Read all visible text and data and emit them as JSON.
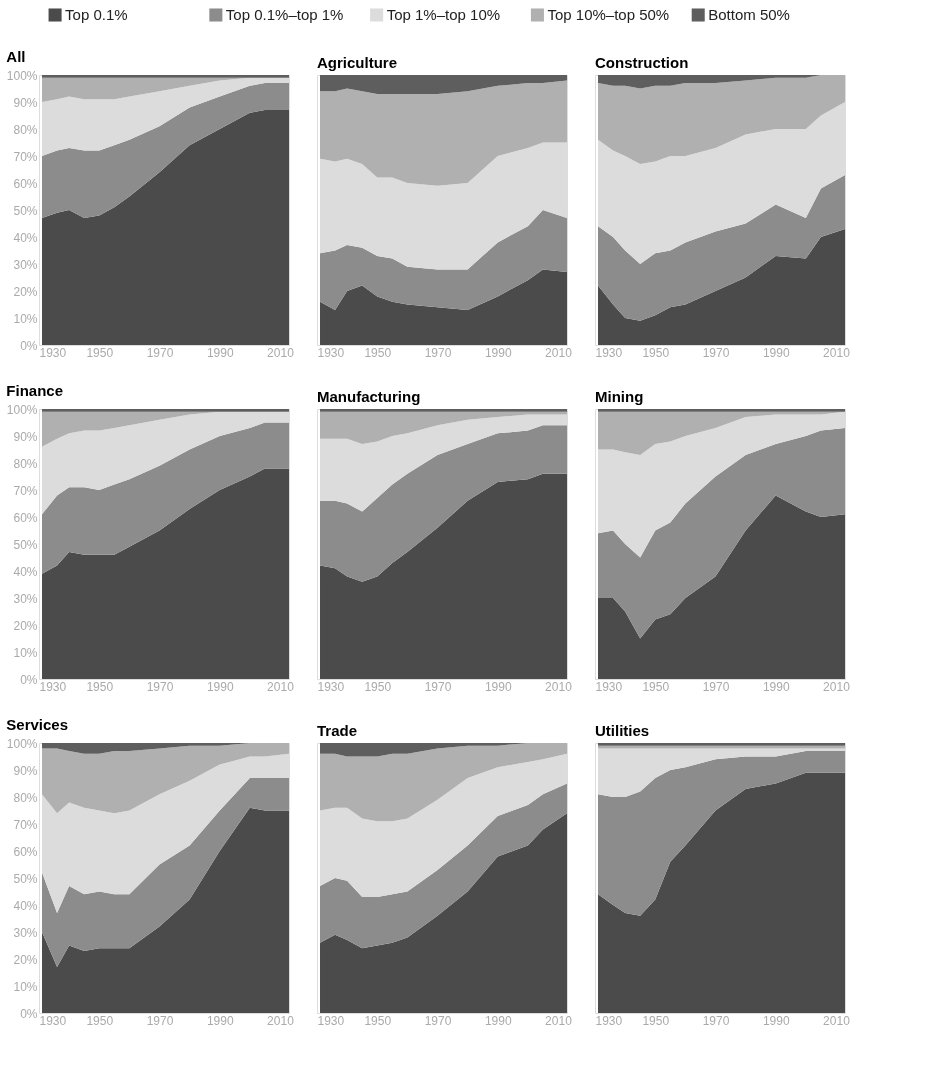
{
  "chart_data": [
    {
      "type": "area",
      "title": "All",
      "stacked": true,
      "legend": "top",
      "x": [
        1931,
        1936,
        1940,
        1945,
        1950,
        1955,
        1960,
        1970,
        1980,
        1990,
        2000,
        2005,
        2013
      ],
      "xlim": [
        1930,
        2013
      ],
      "xticks": [
        1930,
        1950,
        1970,
        1990,
        2010
      ],
      "ylim": [
        0,
        100
      ],
      "yticks": [
        {
          "value": 0,
          "label": "0%"
        },
        {
          "value": 10,
          "label": "10%"
        },
        {
          "value": 20,
          "label": "20%"
        },
        {
          "value": 30,
          "label": "30%"
        },
        {
          "value": 40,
          "label": "40%"
        },
        {
          "value": 50,
          "label": "50%"
        },
        {
          "value": 60,
          "label": "60%"
        },
        {
          "value": 70,
          "label": "70%"
        },
        {
          "value": 80,
          "label": "80%"
        },
        {
          "value": 90,
          "label": "90%"
        },
        {
          "value": 100,
          "label": "100%"
        }
      ],
      "series": [
        {
          "name": "Top 0.1%",
          "color": "#4b4b4b",
          "values": [
            47,
            49,
            50,
            47,
            48,
            51,
            55,
            64,
            74,
            80,
            86,
            87,
            87
          ]
        },
        {
          "name": "Top 0.1%–top 1%",
          "color": "#8c8c8c",
          "values": [
            23,
            23,
            23,
            25,
            24,
            23,
            21,
            17,
            14,
            12,
            10,
            10,
            10
          ]
        },
        {
          "name": "Top 1%–top 10%",
          "color": "#dcdcdc",
          "values": [
            20,
            19,
            19,
            19,
            19,
            17,
            16,
            13,
            8,
            6,
            3,
            2,
            2
          ]
        },
        {
          "name": "Top 10%–top 50%",
          "color": "#b0b0b0",
          "values": [
            9,
            8,
            7,
            8,
            8,
            8,
            7,
            5,
            3,
            1,
            0,
            0,
            0
          ]
        },
        {
          "name": "Bottom 50%",
          "color": "#5e5e5e",
          "values": [
            1,
            1,
            1,
            1,
            1,
            1,
            1,
            1,
            1,
            1,
            1,
            1,
            1
          ]
        }
      ]
    },
    {
      "type": "area",
      "title": "Agriculture",
      "stacked": true,
      "tick_labels": "x",
      "x": [
        1931,
        1936,
        1940,
        1945,
        1950,
        1955,
        1960,
        1970,
        1980,
        1990,
        2000,
        2005,
        2013
      ],
      "xlim": [
        1930,
        2013
      ],
      "xticks": [
        1930,
        1950,
        1970,
        1990,
        2010
      ],
      "ylim": [
        0,
        100
      ],
      "series": [
        {
          "color": "#4b4b4b",
          "values": [
            16,
            13,
            20,
            22,
            18,
            16,
            15,
            14,
            13,
            18,
            24,
            28,
            27
          ]
        },
        {
          "color": "#8c8c8c",
          "values": [
            18,
            22,
            17,
            14,
            15,
            16,
            14,
            14,
            15,
            20,
            20,
            22,
            20
          ]
        },
        {
          "color": "#dcdcdc",
          "values": [
            35,
            33,
            32,
            31,
            29,
            30,
            31,
            31,
            32,
            32,
            29,
            25,
            28
          ]
        },
        {
          "color": "#b0b0b0",
          "values": [
            25,
            26,
            26,
            27,
            31,
            31,
            33,
            34,
            34,
            26,
            24,
            22,
            23
          ]
        },
        {
          "color": "#5e5e5e",
          "values": [
            6,
            6,
            5,
            6,
            7,
            7,
            7,
            7,
            6,
            4,
            3,
            3,
            2
          ]
        }
      ]
    },
    {
      "type": "area",
      "title": "Construction",
      "stacked": true,
      "tick_labels": "x",
      "x": [
        1931,
        1936,
        1940,
        1945,
        1950,
        1955,
        1960,
        1970,
        1980,
        1990,
        2000,
        2005,
        2013
      ],
      "xlim": [
        1930,
        2013
      ],
      "xticks": [
        1930,
        1950,
        1970,
        1990,
        2010
      ],
      "ylim": [
        0,
        100
      ],
      "series": [
        {
          "color": "#4b4b4b",
          "values": [
            22,
            15,
            10,
            9,
            11,
            14,
            15,
            20,
            25,
            33,
            32,
            40,
            43
          ]
        },
        {
          "color": "#8c8c8c",
          "values": [
            22,
            25,
            25,
            21,
            23,
            21,
            23,
            22,
            20,
            19,
            15,
            18,
            20
          ]
        },
        {
          "color": "#dcdcdc",
          "values": [
            32,
            32,
            35,
            37,
            34,
            35,
            32,
            31,
            33,
            28,
            33,
            27,
            27
          ]
        },
        {
          "color": "#b0b0b0",
          "values": [
            21,
            24,
            26,
            28,
            28,
            26,
            27,
            24,
            20,
            19,
            19,
            15,
            10
          ]
        },
        {
          "color": "#5e5e5e",
          "values": [
            3,
            4,
            4,
            5,
            4,
            4,
            3,
            3,
            2,
            1,
            1,
            0,
            0
          ]
        }
      ]
    },
    {
      "type": "area",
      "title": "Finance",
      "stacked": true,
      "x": [
        1931,
        1936,
        1940,
        1945,
        1950,
        1955,
        1960,
        1970,
        1980,
        1990,
        2000,
        2005,
        2013
      ],
      "xlim": [
        1930,
        2013
      ],
      "xticks": [
        1930,
        1950,
        1970,
        1990,
        2010
      ],
      "ylim": [
        0,
        100
      ],
      "yticks": [
        {
          "value": 0,
          "label": "0%"
        },
        {
          "value": 10,
          "label": "10%"
        },
        {
          "value": 20,
          "label": "20%"
        },
        {
          "value": 30,
          "label": "30%"
        },
        {
          "value": 40,
          "label": "40%"
        },
        {
          "value": 50,
          "label": "50%"
        },
        {
          "value": 60,
          "label": "60%"
        },
        {
          "value": 70,
          "label": "70%"
        },
        {
          "value": 80,
          "label": "80%"
        },
        {
          "value": 90,
          "label": "90%"
        },
        {
          "value": 100,
          "label": "100%"
        }
      ],
      "series": [
        {
          "color": "#4b4b4b",
          "values": [
            39,
            42,
            47,
            46,
            46,
            46,
            49,
            55,
            63,
            70,
            75,
            78,
            78
          ]
        },
        {
          "color": "#8c8c8c",
          "values": [
            22,
            26,
            24,
            25,
            24,
            26,
            25,
            24,
            22,
            20,
            18,
            17,
            17
          ]
        },
        {
          "color": "#dcdcdc",
          "values": [
            25,
            21,
            20,
            21,
            22,
            21,
            20,
            17,
            13,
            9,
            6,
            4,
            4
          ]
        },
        {
          "color": "#b0b0b0",
          "values": [
            13,
            10,
            8,
            7,
            7,
            6,
            5,
            3,
            1,
            0,
            0,
            0,
            0
          ]
        },
        {
          "color": "#5e5e5e",
          "values": [
            1,
            1,
            1,
            1,
            1,
            1,
            1,
            1,
            1,
            1,
            1,
            1,
            1
          ]
        }
      ]
    },
    {
      "type": "area",
      "title": "Manufacturing",
      "stacked": true,
      "tick_labels": "x",
      "x": [
        1931,
        1936,
        1940,
        1945,
        1950,
        1955,
        1960,
        1970,
        1980,
        1990,
        2000,
        2005,
        2013
      ],
      "xlim": [
        1930,
        2013
      ],
      "xticks": [
        1930,
        1950,
        1970,
        1990,
        2010
      ],
      "ylim": [
        0,
        100
      ],
      "series": [
        {
          "color": "#4b4b4b",
          "values": [
            42,
            41,
            38,
            36,
            38,
            43,
            47,
            56,
            66,
            73,
            74,
            76,
            76
          ]
        },
        {
          "color": "#8c8c8c",
          "values": [
            24,
            25,
            27,
            26,
            29,
            29,
            29,
            27,
            21,
            18,
            18,
            18,
            18
          ]
        },
        {
          "color": "#dcdcdc",
          "values": [
            23,
            23,
            24,
            25,
            21,
            18,
            15,
            11,
            9,
            6,
            6,
            4,
            4
          ]
        },
        {
          "color": "#b0b0b0",
          "values": [
            10,
            10,
            10,
            12,
            11,
            9,
            8,
            5,
            3,
            2,
            1,
            1,
            1
          ]
        },
        {
          "color": "#5e5e5e",
          "values": [
            1,
            1,
            1,
            1,
            1,
            1,
            1,
            1,
            1,
            1,
            1,
            1,
            1
          ]
        }
      ]
    },
    {
      "type": "area",
      "title": "Mining",
      "stacked": true,
      "tick_labels": "x",
      "x": [
        1931,
        1936,
        1940,
        1945,
        1950,
        1955,
        1960,
        1970,
        1980,
        1990,
        2000,
        2005,
        2013
      ],
      "xlim": [
        1930,
        2013
      ],
      "xticks": [
        1930,
        1950,
        1970,
        1990,
        2010
      ],
      "ylim": [
        0,
        100
      ],
      "series": [
        {
          "color": "#4b4b4b",
          "values": [
            30,
            30,
            25,
            15,
            22,
            24,
            30,
            38,
            55,
            68,
            62,
            60,
            61
          ]
        },
        {
          "color": "#8c8c8c",
          "values": [
            24,
            25,
            25,
            30,
            33,
            34,
            35,
            37,
            28,
            19,
            28,
            32,
            32
          ]
        },
        {
          "color": "#dcdcdc",
          "values": [
            31,
            30,
            34,
            38,
            32,
            30,
            25,
            18,
            14,
            11,
            8,
            6,
            6
          ]
        },
        {
          "color": "#b0b0b0",
          "values": [
            14,
            14,
            15,
            16,
            12,
            11,
            9,
            6,
            2,
            1,
            1,
            1,
            0
          ]
        },
        {
          "color": "#5e5e5e",
          "values": [
            1,
            1,
            1,
            1,
            1,
            1,
            1,
            1,
            1,
            1,
            1,
            1,
            1
          ]
        }
      ]
    },
    {
      "type": "area",
      "title": "Services",
      "stacked": true,
      "x": [
        1931,
        1936,
        1940,
        1945,
        1950,
        1955,
        1960,
        1970,
        1980,
        1990,
        2000,
        2005,
        2013
      ],
      "xlim": [
        1930,
        2013
      ],
      "xticks": [
        1930,
        1950,
        1970,
        1990,
        2010
      ],
      "ylim": [
        0,
        100
      ],
      "yticks": [
        {
          "value": 0,
          "label": "0%"
        },
        {
          "value": 10,
          "label": "10%"
        },
        {
          "value": 20,
          "label": "20%"
        },
        {
          "value": 30,
          "label": "30%"
        },
        {
          "value": 40,
          "label": "40%"
        },
        {
          "value": 50,
          "label": "50%"
        },
        {
          "value": 60,
          "label": "60%"
        },
        {
          "value": 70,
          "label": "70%"
        },
        {
          "value": 80,
          "label": "80%"
        },
        {
          "value": 90,
          "label": "90%"
        },
        {
          "value": 100,
          "label": "100%"
        }
      ],
      "series": [
        {
          "color": "#4b4b4b",
          "values": [
            30,
            17,
            25,
            23,
            24,
            24,
            24,
            32,
            42,
            60,
            76,
            75,
            75
          ]
        },
        {
          "color": "#8c8c8c",
          "values": [
            22,
            20,
            22,
            21,
            21,
            20,
            20,
            23,
            20,
            15,
            11,
            12,
            12
          ]
        },
        {
          "color": "#dcdcdc",
          "values": [
            29,
            37,
            31,
            32,
            30,
            30,
            31,
            26,
            24,
            17,
            8,
            8,
            9
          ]
        },
        {
          "color": "#b0b0b0",
          "values": [
            17,
            24,
            19,
            20,
            21,
            23,
            22,
            17,
            13,
            7,
            5,
            5,
            4
          ]
        },
        {
          "color": "#5e5e5e",
          "values": [
            2,
            2,
            3,
            4,
            4,
            3,
            3,
            2,
            1,
            1,
            0,
            0,
            0
          ]
        }
      ]
    },
    {
      "type": "area",
      "title": "Trade",
      "stacked": true,
      "tick_labels": "x",
      "x": [
        1931,
        1936,
        1940,
        1945,
        1950,
        1955,
        1960,
        1970,
        1980,
        1990,
        2000,
        2005,
        2013
      ],
      "xlim": [
        1930,
        2013
      ],
      "xticks": [
        1930,
        1950,
        1970,
        1990,
        2010
      ],
      "ylim": [
        0,
        100
      ],
      "series": [
        {
          "color": "#4b4b4b",
          "values": [
            26,
            29,
            27,
            24,
            25,
            26,
            28,
            36,
            45,
            58,
            62,
            68,
            74
          ]
        },
        {
          "color": "#8c8c8c",
          "values": [
            21,
            21,
            22,
            19,
            18,
            18,
            17,
            17,
            17,
            15,
            15,
            13,
            11
          ]
        },
        {
          "color": "#dcdcdc",
          "values": [
            28,
            26,
            27,
            29,
            28,
            27,
            27,
            26,
            25,
            18,
            16,
            13,
            11
          ]
        },
        {
          "color": "#b0b0b0",
          "values": [
            21,
            20,
            19,
            23,
            24,
            25,
            24,
            19,
            12,
            8,
            7,
            6,
            4
          ]
        },
        {
          "color": "#5e5e5e",
          "values": [
            4,
            4,
            5,
            5,
            5,
            4,
            4,
            2,
            1,
            1,
            0,
            0,
            0
          ]
        }
      ]
    },
    {
      "type": "area",
      "title": "Utilities",
      "stacked": true,
      "tick_labels": "x",
      "x": [
        1931,
        1936,
        1940,
        1945,
        1950,
        1955,
        1960,
        1970,
        1980,
        1990,
        2000,
        2005,
        2013
      ],
      "xlim": [
        1930,
        2013
      ],
      "xticks": [
        1930,
        1950,
        1970,
        1990,
        2010
      ],
      "ylim": [
        0,
        100
      ],
      "series": [
        {
          "color": "#4b4b4b",
          "values": [
            44,
            40,
            37,
            36,
            42,
            56,
            62,
            75,
            83,
            85,
            89,
            89,
            89
          ]
        },
        {
          "color": "#8c8c8c",
          "values": [
            37,
            40,
            43,
            46,
            45,
            34,
            29,
            19,
            12,
            10,
            8,
            8,
            8
          ]
        },
        {
          "color": "#dcdcdc",
          "values": [
            17,
            18,
            18,
            16,
            11,
            8,
            7,
            4,
            3,
            3,
            1,
            1,
            1
          ]
        },
        {
          "color": "#b0b0b0",
          "values": [
            1,
            1,
            1,
            1,
            1,
            1,
            1,
            1,
            1,
            1,
            1,
            1,
            1
          ]
        },
        {
          "color": "#5e5e5e",
          "values": [
            1,
            1,
            1,
            1,
            1,
            1,
            1,
            1,
            1,
            1,
            1,
            1,
            1
          ]
        }
      ]
    }
  ]
}
